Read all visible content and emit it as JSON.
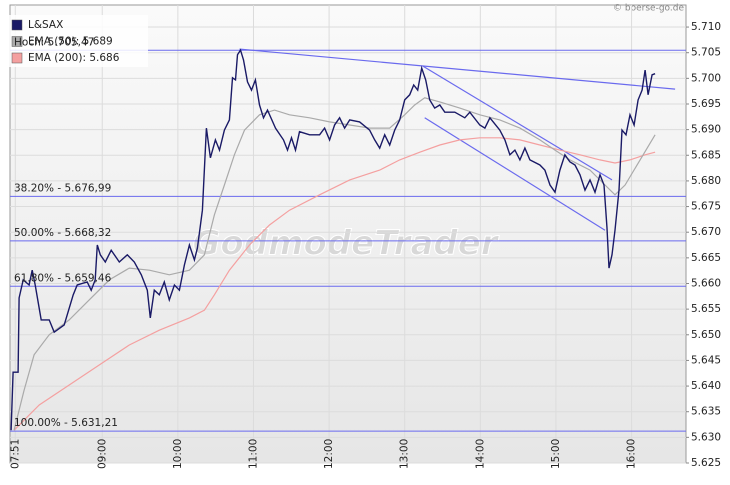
{
  "chart_data": {
    "type": "line",
    "copyright": "© boerse-go.de",
    "watermark": "GodmodeTrader",
    "xlim": [
      7.78,
      16.72
    ],
    "xticks": [
      {
        "value": 7.85,
        "label": "07:51"
      },
      {
        "value": 9,
        "label": "09:00"
      },
      {
        "value": 10,
        "label": "10:00"
      },
      {
        "value": 11,
        "label": "11:00"
      },
      {
        "value": 12,
        "label": "12:00"
      },
      {
        "value": 13,
        "label": "13:00"
      },
      {
        "value": 14,
        "label": "14:00"
      },
      {
        "value": 15,
        "label": "15:00"
      },
      {
        "value": 16,
        "label": "16:00"
      }
    ],
    "ylim": [
      5.625,
      5.7143
    ],
    "yticks": [
      5.625,
      {
        "value": 5.63,
        "label": "5.630"
      },
      5.635,
      {
        "value": 5.64,
        "label": "5.640"
      },
      5.645,
      {
        "value": 5.65,
        "label": "5.650"
      },
      5.655,
      {
        "value": 5.66,
        "label": "5.660"
      },
      5.665,
      {
        "value": 5.67,
        "label": "5.670"
      },
      5.675,
      {
        "value": 5.68,
        "label": "5.680"
      },
      5.685,
      {
        "value": 5.69,
        "label": "5.690"
      },
      5.695,
      {
        "value": 5.7,
        "label": "5.700"
      },
      5.705,
      {
        "value": 5.71,
        "label": "5.710"
      }
    ],
    "grid": true,
    "series": [
      {
        "name": "L&SAX",
        "color": "#1a1a66",
        "x": [
          7.795,
          7.821,
          7.887,
          7.901,
          7.954,
          8.033,
          8.073,
          8.113,
          8.192,
          8.298,
          8.364,
          8.497,
          8.616,
          8.669,
          8.801,
          8.854,
          8.907,
          8.934,
          8.974,
          9.04,
          9.119,
          9.225,
          9.331,
          9.424,
          9.517,
          9.596,
          9.636,
          9.689,
          9.755,
          9.821,
          9.887,
          9.954,
          10.02,
          10.086,
          10.152,
          10.219,
          10.258,
          10.325,
          10.377,
          10.43,
          10.497,
          10.55,
          10.616,
          10.682,
          10.722,
          10.762,
          10.788,
          10.828,
          10.868,
          10.921,
          10.974,
          11.026,
          11.079,
          11.132,
          11.185,
          11.291,
          11.397,
          11.45,
          11.503,
          11.556,
          11.609,
          11.742,
          11.874,
          11.94,
          12.007,
          12.073,
          12.139,
          12.205,
          12.272,
          12.404,
          12.536,
          12.603,
          12.669,
          12.735,
          12.801,
          12.868,
          12.934,
          13.0,
          13.066,
          13.119,
          13.172,
          13.225,
          13.278,
          13.331,
          13.397,
          13.464,
          13.53,
          13.662,
          13.795,
          13.861,
          13.993,
          14.06,
          14.126,
          14.258,
          14.325,
          14.391,
          14.457,
          14.523,
          14.589,
          14.656,
          14.788,
          14.854,
          14.921,
          14.987,
          15.053,
          15.119,
          15.185,
          15.252,
          15.318,
          15.384,
          15.45,
          15.517,
          15.583,
          15.636,
          15.675,
          15.702,
          15.742,
          15.781,
          15.834,
          15.874,
          15.927,
          15.98,
          16.033,
          16.086,
          16.139,
          16.179,
          16.219,
          16.272,
          16.311
        ],
        "values": [
          5.6314,
          5.6427,
          5.6427,
          5.6572,
          5.6607,
          5.6597,
          5.6626,
          5.6597,
          5.6529,
          5.6529,
          5.6505,
          5.6519,
          5.6578,
          5.6597,
          5.6603,
          5.6587,
          5.6607,
          5.6675,
          5.6656,
          5.6642,
          5.6665,
          5.6642,
          5.6656,
          5.6642,
          5.6617,
          5.6587,
          5.6533,
          5.6587,
          5.6578,
          5.6603,
          5.6568,
          5.6597,
          5.6587,
          5.6636,
          5.6675,
          5.6646,
          5.6669,
          5.6743,
          5.6903,
          5.6845,
          5.688,
          5.686,
          5.6899,
          5.6919,
          5.7001,
          5.6997,
          5.7046,
          5.7055,
          5.7036,
          5.6993,
          5.6977,
          5.6997,
          5.6948,
          5.6923,
          5.6938,
          5.6903,
          5.688,
          5.686,
          5.6884,
          5.686,
          5.6896,
          5.689,
          5.689,
          5.6903,
          5.688,
          5.6909,
          5.6923,
          5.6903,
          5.6919,
          5.6915,
          5.6899,
          5.688,
          5.6864,
          5.689,
          5.687,
          5.6899,
          5.6919,
          5.6958,
          5.6968,
          5.6987,
          5.6977,
          5.702,
          5.6997,
          5.6958,
          5.6942,
          5.6948,
          5.6934,
          5.6934,
          5.6923,
          5.6934,
          5.6909,
          5.6903,
          5.6923,
          5.6899,
          5.688,
          5.6851,
          5.686,
          5.6841,
          5.6864,
          5.6841,
          5.6831,
          5.6821,
          5.6792,
          5.6778,
          5.6821,
          5.6851,
          5.6837,
          5.6831,
          5.6812,
          5.6782,
          5.6802,
          5.6778,
          5.6812,
          5.6792,
          5.6708,
          5.663,
          5.6656,
          5.6704,
          5.6782,
          5.6899,
          5.689,
          5.6929,
          5.6909,
          5.6958,
          5.6977,
          5.7016,
          5.6968,
          5.7007,
          5.7009
        ]
      },
      {
        "name": "EMA (50): 5.689",
        "color": "#aaaaaa",
        "x": [
          7.834,
          7.967,
          8.099,
          8.298,
          8.563,
          8.828,
          9.093,
          9.358,
          9.623,
          9.887,
          10.152,
          10.351,
          10.483,
          10.616,
          10.748,
          10.881,
          11.079,
          11.278,
          11.477,
          11.742,
          12.007,
          12.272,
          12.536,
          12.801,
          13.0,
          13.132,
          13.265,
          13.464,
          13.728,
          13.993,
          14.258,
          14.523,
          14.788,
          14.987,
          15.185,
          15.45,
          15.649,
          15.781,
          15.914,
          16.113,
          16.311
        ],
        "values": [
          5.6314,
          5.6392,
          5.6461,
          5.65,
          5.6529,
          5.6568,
          5.6607,
          5.663,
          5.6626,
          5.6617,
          5.6626,
          5.6656,
          5.6734,
          5.6792,
          5.6851,
          5.6899,
          5.6929,
          5.6938,
          5.6929,
          5.6923,
          5.6915,
          5.6909,
          5.6903,
          5.6903,
          5.6929,
          5.6948,
          5.6962,
          5.6954,
          5.6942,
          5.6929,
          5.6919,
          5.6903,
          5.688,
          5.686,
          5.6841,
          5.6821,
          5.6792,
          5.6773,
          5.6792,
          5.6841,
          5.689
        ]
      },
      {
        "name": "EMA (200): 5.686",
        "color": "#f4a0a0",
        "x": [
          7.834,
          8.166,
          8.563,
          8.96,
          9.358,
          9.755,
          10.152,
          10.351,
          10.483,
          10.682,
          10.947,
          11.212,
          11.477,
          11.874,
          12.272,
          12.669,
          12.934,
          13.199,
          13.464,
          13.728,
          13.993,
          14.258,
          14.523,
          14.788,
          15.053,
          15.318,
          15.583,
          15.781,
          15.98,
          16.179,
          16.311
        ],
        "values": [
          5.6314,
          5.6363,
          5.6402,
          5.6441,
          5.648,
          5.6509,
          5.6533,
          5.6548,
          5.6578,
          5.6626,
          5.6675,
          5.6714,
          5.6743,
          5.6773,
          5.6802,
          5.6821,
          5.6841,
          5.6856,
          5.687,
          5.688,
          5.6884,
          5.6884,
          5.688,
          5.687,
          5.686,
          5.6851,
          5.6841,
          5.6835,
          5.6841,
          5.6851,
          5.6856
        ]
      }
    ],
    "levels": [
      {
        "value": 5.70547,
        "label": "Hoch: 5.705,47"
      },
      {
        "value": 5.67699,
        "label": "38.20% - 5.676,99"
      },
      {
        "value": 5.66832,
        "label": "50.00% - 5.668,32"
      },
      {
        "value": 5.65946,
        "label": "61.80% - 5.659,46"
      },
      {
        "value": 5.63121,
        "label": "100.00% - 5.631,21"
      }
    ],
    "level_color": "#6a6aee",
    "trendlines": [
      {
        "x": [
          10.815,
          16.576
        ],
        "values": [
          5.7057,
          5.6979
        ]
      },
      {
        "x": [
          13.238,
          15.742
        ],
        "values": [
          5.7024,
          5.6802
        ]
      },
      {
        "x": [
          13.265,
          15.649
        ],
        "values": [
          5.6923,
          5.6704
        ]
      }
    ]
  }
}
